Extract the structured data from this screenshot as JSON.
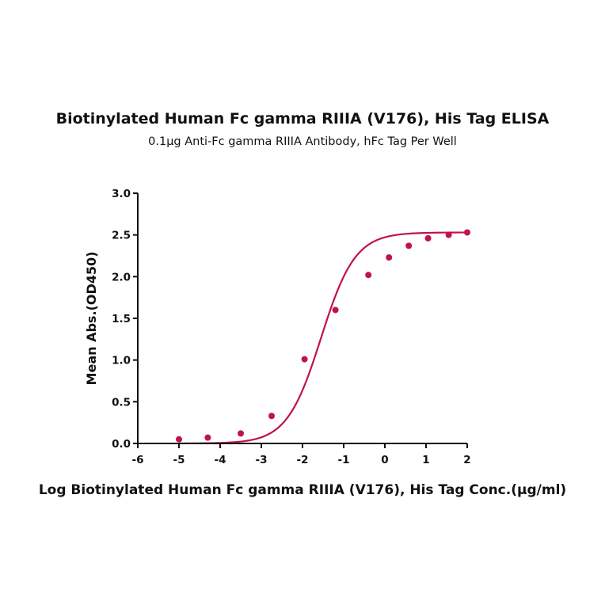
{
  "chart_data": {
    "type": "scatter",
    "title": "Biotinylated Human Fc gamma RIIIA (V176), His Tag ELISA",
    "subtitle": "0.1μg Anti-Fc gamma RIIIA Antibody, hFc Tag Per Well",
    "xlabel": "Log Biotinylated Human Fc gamma RIIIA (V176), His Tag Conc.(μg/ml)",
    "ylabel": "Mean Abs.(OD450)",
    "xlim": [
      -6,
      2
    ],
    "ylim": [
      0,
      3.0
    ],
    "x_ticks": [
      "-6",
      "-5",
      "-4",
      "-3",
      "-2",
      "-1",
      "0",
      "1",
      "2"
    ],
    "y_ticks": [
      "0.0",
      "0.5",
      "1.0",
      "1.5",
      "2.0",
      "2.5",
      "3.0"
    ],
    "grid": false,
    "color": "#c0134a",
    "series": [
      {
        "points": [
          {
            "x": -5.0,
            "y": 0.05
          },
          {
            "x": -4.3,
            "y": 0.07
          },
          {
            "x": -3.5,
            "y": 0.12
          },
          {
            "x": -2.75,
            "y": 0.33
          },
          {
            "x": -1.95,
            "y": 1.01
          },
          {
            "x": -1.2,
            "y": 1.6
          },
          {
            "x": -0.4,
            "y": 2.02
          },
          {
            "x": 0.1,
            "y": 2.23
          },
          {
            "x": 0.58,
            "y": 2.37
          },
          {
            "x": 1.05,
            "y": 2.46
          },
          {
            "x": 1.55,
            "y": 2.5
          },
          {
            "x": 2.0,
            "y": 2.53
          }
        ],
        "fit": {
          "model": "4PL",
          "bottom": 0.0,
          "top": 2.53,
          "log_ec50": -1.55,
          "hill": 1.05
        }
      }
    ]
  }
}
